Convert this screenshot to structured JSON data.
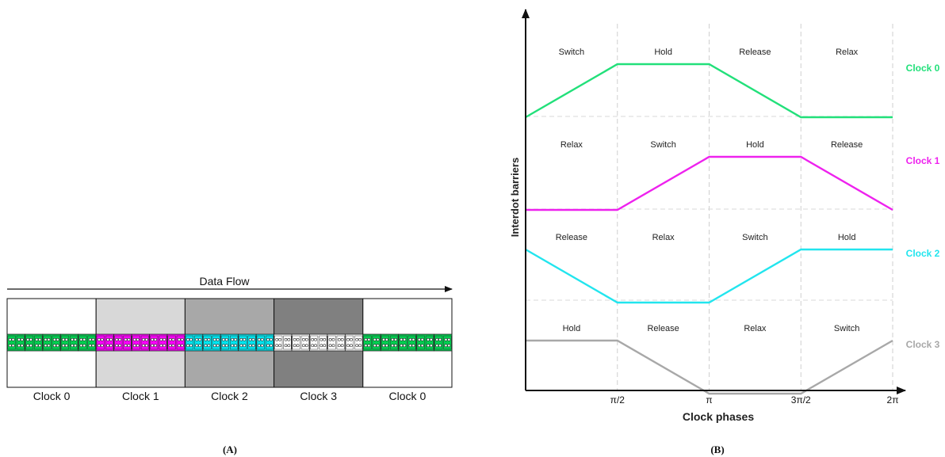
{
  "panelA": {
    "data_flow_label": "Data Flow",
    "zones": [
      {
        "label": "Clock 0",
        "bg": "#ffffff",
        "cell": "#00d050"
      },
      {
        "label": "Clock 1",
        "bg": "#d8d8d8",
        "cell": "#ff00ff"
      },
      {
        "label": "Clock 2",
        "bg": "#a8a8a8",
        "cell": "#00e6f0"
      },
      {
        "label": "Clock 3",
        "bg": "#808080",
        "cell": "#ffffff"
      },
      {
        "label": "Clock 0",
        "bg": "#ffffff",
        "cell": "#00d050"
      }
    ],
    "cells_per_zone": 5,
    "caption": "(A)"
  },
  "panelB": {
    "ylabel": "Interdot barriers",
    "xlabel": "Clock phases",
    "xticks": [
      "π/2",
      "π",
      "3π/2",
      "2π"
    ],
    "caption": "(B)",
    "clocks": [
      {
        "name": "Clock 0",
        "color": "#22e07a",
        "phases": [
          "Switch",
          "Hold",
          "Release",
          "Relax"
        ],
        "levels": [
          0,
          1,
          1,
          0,
          0
        ]
      },
      {
        "name": "Clock 1",
        "color": "#ee22ee",
        "phases": [
          "Relax",
          "Switch",
          "Hold",
          "Release"
        ],
        "levels": [
          0,
          0,
          1,
          1,
          0
        ]
      },
      {
        "name": "Clock 2",
        "color": "#22e5ee",
        "phases": [
          "Release",
          "Relax",
          "Switch",
          "Hold"
        ],
        "levels": [
          1,
          0,
          0,
          1,
          1
        ]
      },
      {
        "name": "Clock 3",
        "color": "#a8a8a8",
        "phases": [
          "Hold",
          "Release",
          "Relax",
          "Switch"
        ],
        "levels": [
          1,
          1,
          0,
          0,
          1
        ]
      }
    ]
  }
}
